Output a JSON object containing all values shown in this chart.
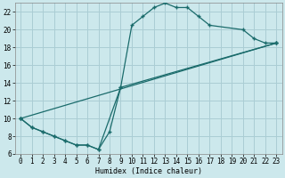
{
  "xlabel": "Humidex (Indice chaleur)",
  "bg_color": "#cce8ec",
  "grid_color": "#aacdd4",
  "line_color": "#1a6b6b",
  "xlim": [
    -0.5,
    23.5
  ],
  "ylim": [
    6,
    23
  ],
  "xticks": [
    0,
    1,
    2,
    3,
    4,
    5,
    6,
    7,
    8,
    9,
    10,
    11,
    12,
    13,
    14,
    15,
    16,
    17,
    18,
    19,
    20,
    21,
    22,
    23
  ],
  "yticks": [
    6,
    8,
    10,
    12,
    14,
    16,
    18,
    20,
    22
  ],
  "line1_x": [
    0,
    1,
    2,
    3,
    4,
    5,
    6,
    7,
    8,
    9,
    10,
    11,
    12,
    13,
    14,
    15,
    16,
    17,
    20,
    21,
    22,
    23
  ],
  "line1_y": [
    10,
    9,
    8.5,
    8,
    7.5,
    7,
    7,
    6.5,
    8.5,
    13.5,
    20.5,
    21.5,
    22.5,
    23.0,
    22.5,
    22.5,
    21.5,
    20.5,
    20,
    19,
    18.5,
    18.5
  ],
  "line2_x": [
    0,
    1,
    2,
    3,
    4,
    5,
    6,
    7,
    9,
    23
  ],
  "line2_y": [
    10,
    9,
    8.5,
    8,
    7.5,
    7,
    7,
    6.5,
    13.5,
    18.5
  ],
  "line3_x": [
    0,
    23
  ],
  "line3_y": [
    10,
    18.5
  ],
  "tick_fontsize": 5.5,
  "xlabel_fontsize": 6
}
